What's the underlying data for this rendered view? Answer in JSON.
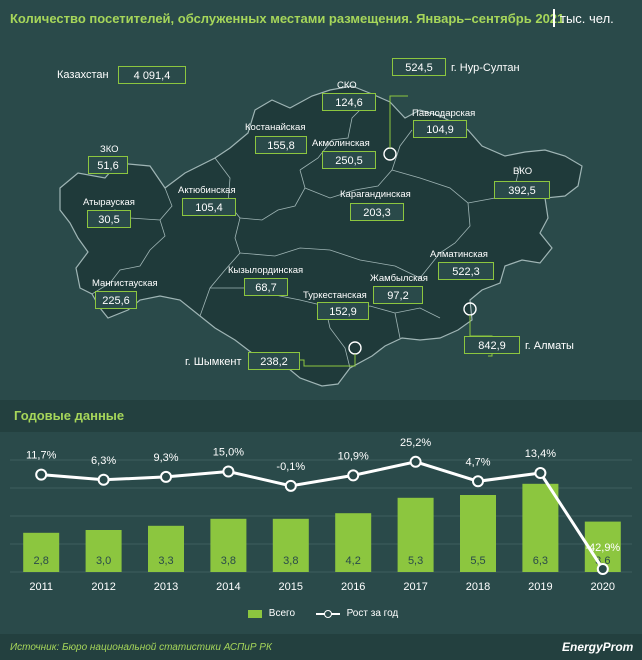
{
  "header": {
    "title": "Количество посетителей, обслуженных местами размещения. Январь–сентябрь 2021",
    "unit": "тыс. чел."
  },
  "map": {
    "total_label": "Казахстан",
    "total_value": "4 091,4",
    "regions": [
      {
        "id": "sko",
        "name": "СКО",
        "value": "124,6"
      },
      {
        "id": "nur-sultan",
        "name": "г. Нур-Султан",
        "value": "524,5"
      },
      {
        "id": "pavlodar",
        "name": "Павлодарская",
        "value": "104,9"
      },
      {
        "id": "kostanay",
        "name": "Костанайская",
        "value": "155,8"
      },
      {
        "id": "akmola",
        "name": "Акмолинская",
        "value": "250,5"
      },
      {
        "id": "zko",
        "name": "ЗКО",
        "value": "51,6"
      },
      {
        "id": "vko",
        "name": "ВКО",
        "value": "392,5"
      },
      {
        "id": "aktobe",
        "name": "Актюбинская",
        "value": "105,4"
      },
      {
        "id": "atyrau",
        "name": "Атырауская",
        "value": "30,5"
      },
      {
        "id": "karaganda",
        "name": "Карагандинская",
        "value": "203,3"
      },
      {
        "id": "almaty-obl",
        "name": "Алматинская",
        "value": "522,3"
      },
      {
        "id": "kyzylorda",
        "name": "Кызылординская",
        "value": "68,7"
      },
      {
        "id": "zhambyl",
        "name": "Жамбылская",
        "value": "97,2"
      },
      {
        "id": "mangystau",
        "name": "Мангистауская",
        "value": "225,6"
      },
      {
        "id": "turkestan",
        "name": "Туркестанская",
        "value": "152,9"
      },
      {
        "id": "almaty-city",
        "name": "г. Алматы",
        "value": "842,9"
      },
      {
        "id": "shymkent",
        "name": "г. Шымкент",
        "value": "238,2"
      }
    ]
  },
  "annual": {
    "section_title": "Годовые данные"
  },
  "chart_data": {
    "type": "bar",
    "categories": [
      "2011",
      "2012",
      "2013",
      "2014",
      "2015",
      "2016",
      "2017",
      "2018",
      "2019",
      "2020"
    ],
    "series": [
      {
        "name": "Всего",
        "type": "bar",
        "values": [
          2.8,
          3.0,
          3.3,
          3.8,
          3.8,
          4.2,
          5.3,
          5.5,
          6.3,
          3.6
        ],
        "labels": [
          "2,8",
          "3,0",
          "3,3",
          "3,8",
          "3,8",
          "4,2",
          "5,3",
          "5,5",
          "6,3",
          "3,6"
        ],
        "color": "#8cc63f"
      },
      {
        "name": "Рост за год",
        "type": "line",
        "values": [
          11.7,
          6.3,
          9.3,
          15.0,
          -0.1,
          10.9,
          25.2,
          4.7,
          13.4,
          -42.9
        ],
        "labels": [
          "11,7%",
          "6,3%",
          "9,3%",
          "15,0%",
          "-0,1%",
          "10,9%",
          "25,2%",
          "4,7%",
          "13,4%",
          "-42,9%"
        ],
        "color": "#ffffff"
      }
    ],
    "legend": [
      "Всего",
      "Рост за год"
    ],
    "legend_position": "bottom",
    "grid": true
  },
  "footer": {
    "source": "Источник: Бюро национальной статистики АСПиР РК",
    "brand": "EnergyProm"
  },
  "colors": {
    "background": "#2a4a4a",
    "accent": "#8cc63f",
    "title": "#a6d65a",
    "map_fill": "#1f3a3a"
  }
}
